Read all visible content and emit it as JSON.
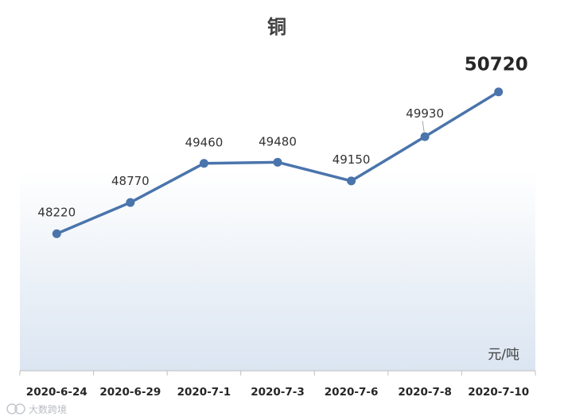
{
  "chart_data": {
    "type": "line",
    "title": "铜",
    "unit": "元/吨",
    "categories": [
      "2020-6-24",
      "2020-6-29",
      "2020-7-1",
      "2020-7-3",
      "2020-7-6",
      "2020-7-8",
      "2020-7-10"
    ],
    "series": [
      {
        "values": [
          48220,
          48770,
          49460,
          49480,
          49150,
          49930,
          50720
        ]
      }
    ],
    "data_labels": [
      "48220",
      "48770",
      "49460",
      "49480",
      "49150",
      "49930",
      "50720"
    ],
    "ylim": [
      46000,
      51100
    ],
    "grid": false,
    "line_color": "#4a74ac",
    "background_gradient": [
      "#ffffff",
      "#dbe5f1"
    ]
  },
  "watermark": "大数跨境"
}
